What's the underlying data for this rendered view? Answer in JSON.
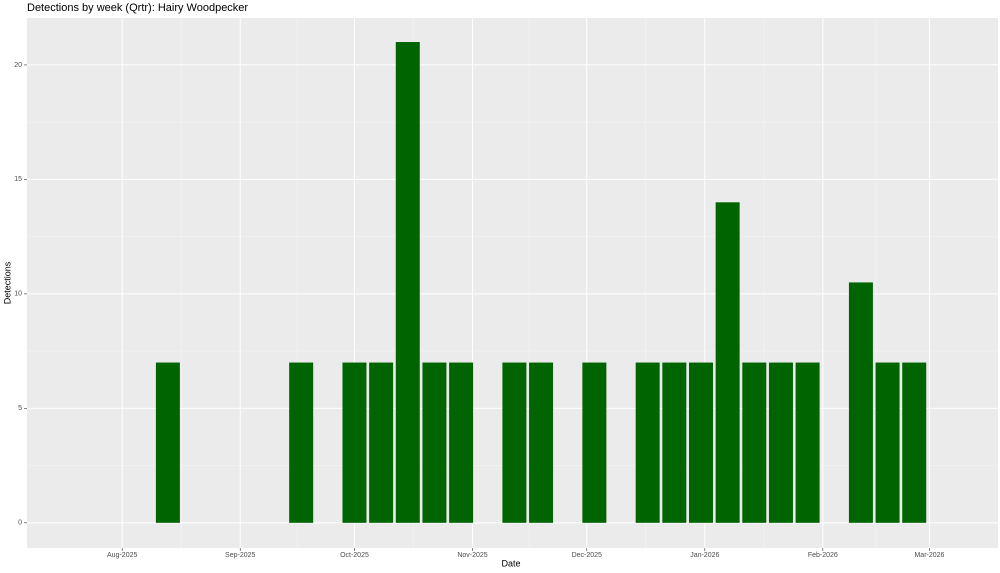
{
  "chart_data": {
    "type": "bar",
    "title": "Detections by week (Qrtr): Hairy Woodpecker",
    "x_label": "Date",
    "y_label": "Detections",
    "x": [
      "2025-08-13",
      "2025-09-17",
      "2025-10-01",
      "2025-10-08",
      "2025-10-15",
      "2025-10-22",
      "2025-10-29",
      "2025-11-12",
      "2025-11-19",
      "2025-12-03",
      "2025-12-17",
      "2025-12-24",
      "2025-12-31",
      "2026-01-07",
      "2026-01-14",
      "2026-01-21",
      "2026-01-28",
      "2026-02-11",
      "2026-02-18",
      "2026-02-25"
    ],
    "values": [
      7,
      7,
      7,
      7,
      21,
      7,
      7,
      7,
      7,
      7,
      7,
      7,
      7,
      14,
      7,
      7,
      7,
      10.5,
      7,
      7
    ],
    "color": "#006400",
    "xlim": [
      "2025-07-07",
      "2026-03-19"
    ],
    "xticks": [
      {
        "value": "2025-08-01",
        "label": "Aug-2025"
      },
      {
        "value": "2025-09-01",
        "label": "Sep-2025"
      },
      {
        "value": "2025-10-01",
        "label": "Oct-2025"
      },
      {
        "value": "2025-11-01",
        "label": "Nov-2025"
      },
      {
        "value": "2025-12-01",
        "label": "Dec-2025"
      },
      {
        "value": "2026-01-01",
        "label": "Jan-2026"
      },
      {
        "value": "2026-02-01",
        "label": "Feb-2026"
      },
      {
        "value": "2026-03-01",
        "label": "Mar-2026"
      }
    ],
    "ylim": [
      -1.1,
      22.05
    ],
    "yticks": [
      0,
      5,
      10,
      15,
      20
    ],
    "grid": true
  }
}
